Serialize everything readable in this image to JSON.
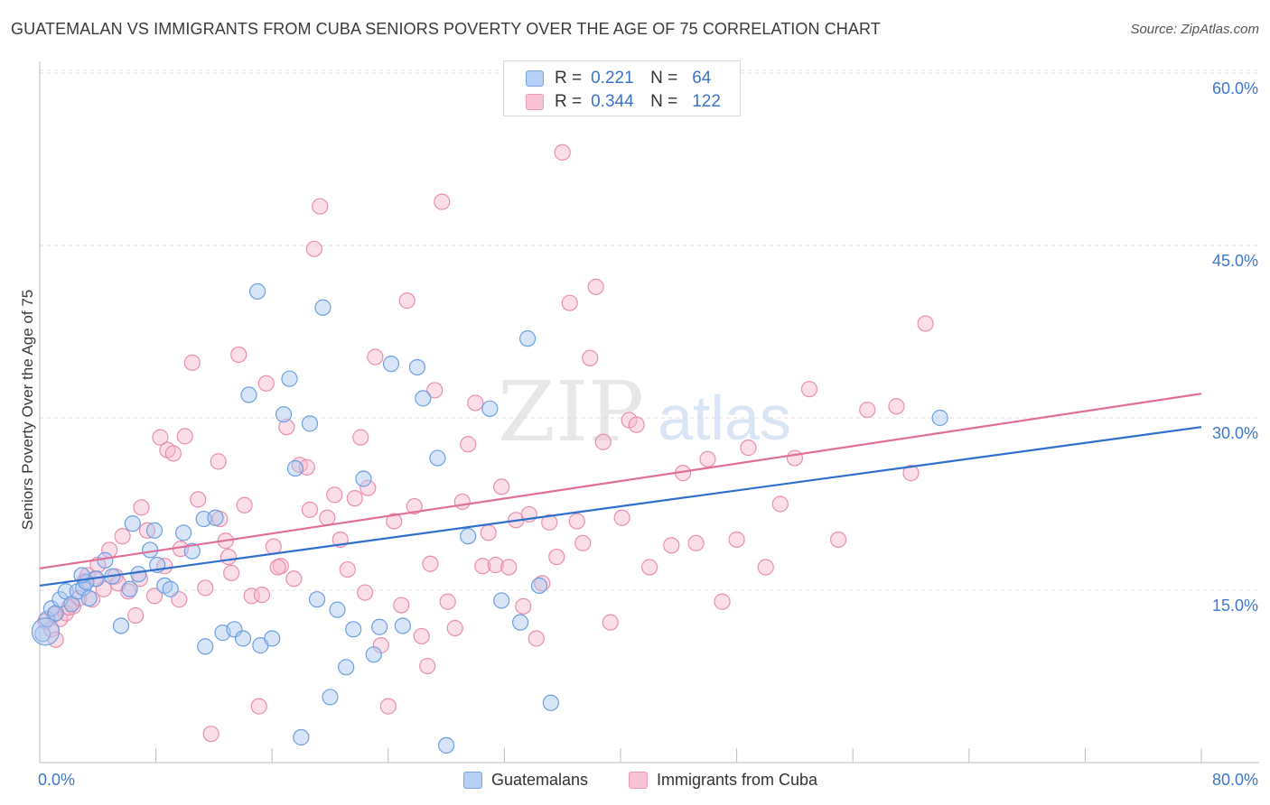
{
  "title": "GUATEMALAN VS IMMIGRANTS FROM CUBA SENIORS POVERTY OVER THE AGE OF 75 CORRELATION CHART",
  "source": "Source: ZipAtlas.com",
  "watermark": {
    "zip": "ZIP",
    "atlas": "atlas"
  },
  "legend_top": {
    "rows": [
      {
        "r_label": "R =",
        "r_value": "0.221",
        "n_label": "N =",
        "n_value": "64"
      },
      {
        "r_label": "R =",
        "r_value": "0.344",
        "n_label": "N =",
        "n_value": "122"
      }
    ]
  },
  "legend_bottom": {
    "series_a": "Guatemalans",
    "series_b": "Immigrants from Cuba"
  },
  "colors": {
    "blue_fill": "#a9c6f0",
    "blue_stroke": "#6f9fe0",
    "blue_line": "#2f6fcc",
    "pink_fill": "#f6b6cb",
    "pink_stroke": "#e98fae",
    "pink_line": "#e06e98",
    "grid": "#dcdcdc",
    "axis_text": "#3f78cc"
  },
  "chart_data": {
    "type": "scatter",
    "title": "GUATEMALAN VS IMMIGRANTS FROM CUBA SENIORS POVERTY OVER THE AGE OF 75 CORRELATION CHART",
    "xlabel": "",
    "ylabel": "Seniors Poverty Over the Age of 75",
    "xlim": [
      0,
      80
    ],
    "ylim": [
      0,
      62
    ],
    "x_tick_labels": [
      "0.0%",
      "80.0%"
    ],
    "y_ticks": [
      15,
      30,
      45,
      60
    ],
    "y_tick_labels": [
      "15.0%",
      "30.0%",
      "45.0%",
      "60.0%"
    ],
    "grid": true,
    "series": [
      {
        "name": "Guatemalans",
        "r": 0.221,
        "n": 64,
        "trend": {
          "x": [
            0,
            80
          ],
          "y": [
            15.4,
            29.2
          ]
        },
        "points": [
          [
            0.2,
            11.2
          ],
          [
            0.5,
            12.5
          ],
          [
            0.8,
            13.4
          ],
          [
            1.1,
            13.0
          ],
          [
            1.4,
            14.2
          ],
          [
            1.8,
            14.9
          ],
          [
            2.2,
            13.8
          ],
          [
            2.6,
            14.9
          ],
          [
            3.0,
            15.2
          ],
          [
            3.4,
            14.3
          ],
          [
            3.9,
            16.0
          ],
          [
            4.5,
            17.6
          ],
          [
            5.0,
            16.2
          ],
          [
            5.6,
            11.9
          ],
          [
            6.2,
            15.1
          ],
          [
            6.8,
            16.4
          ],
          [
            7.6,
            18.5
          ],
          [
            8.1,
            17.2
          ],
          [
            8.6,
            15.4
          ],
          [
            9.0,
            15.1
          ],
          [
            9.9,
            20.0
          ],
          [
            10.5,
            18.4
          ],
          [
            11.3,
            21.2
          ],
          [
            12.1,
            21.3
          ],
          [
            12.6,
            11.3
          ],
          [
            13.4,
            11.6
          ],
          [
            14.0,
            10.8
          ],
          [
            14.4,
            32.0
          ],
          [
            15.0,
            41.0
          ],
          [
            15.2,
            10.2
          ],
          [
            16.0,
            10.8
          ],
          [
            16.8,
            30.3
          ],
          [
            17.2,
            33.4
          ],
          [
            17.6,
            25.6
          ],
          [
            18.0,
            2.2
          ],
          [
            18.6,
            29.5
          ],
          [
            19.1,
            14.2
          ],
          [
            19.5,
            39.6
          ],
          [
            20.0,
            5.7
          ],
          [
            20.5,
            13.3
          ],
          [
            21.1,
            8.3
          ],
          [
            21.6,
            11.6
          ],
          [
            22.3,
            24.7
          ],
          [
            23.0,
            9.4
          ],
          [
            23.4,
            11.8
          ],
          [
            24.2,
            34.7
          ],
          [
            25.0,
            11.9
          ],
          [
            26.0,
            34.4
          ],
          [
            26.4,
            31.7
          ],
          [
            27.4,
            26.5
          ],
          [
            28.0,
            1.5
          ],
          [
            29.5,
            19.7
          ],
          [
            31.0,
            30.8
          ],
          [
            31.8,
            14.1
          ],
          [
            33.1,
            12.2
          ],
          [
            33.6,
            36.9
          ],
          [
            34.4,
            15.4
          ],
          [
            35.2,
            5.2
          ],
          [
            11.4,
            10.1
          ],
          [
            6.4,
            20.8
          ],
          [
            7.9,
            20.2
          ],
          [
            3.2,
            15.7
          ],
          [
            2.9,
            16.3
          ],
          [
            62.0,
            30.0
          ]
        ]
      },
      {
        "name": "Immigrants from Cuba",
        "r": 0.344,
        "n": 122,
        "trend": {
          "x": [
            0,
            80
          ],
          "y": [
            16.9,
            32.1
          ]
        },
        "points": [
          [
            0.4,
            12.3
          ],
          [
            0.8,
            11.6
          ],
          [
            1.1,
            10.7
          ],
          [
            1.4,
            12.5
          ],
          [
            1.8,
            13.0
          ],
          [
            2.3,
            13.6
          ],
          [
            2.7,
            14.3
          ],
          [
            3.1,
            15.8
          ],
          [
            3.6,
            14.2
          ],
          [
            4.0,
            17.2
          ],
          [
            4.4,
            15.1
          ],
          [
            4.8,
            18.5
          ],
          [
            5.2,
            16.2
          ],
          [
            5.7,
            19.7
          ],
          [
            6.1,
            14.9
          ],
          [
            6.6,
            12.8
          ],
          [
            7.0,
            22.2
          ],
          [
            7.4,
            20.2
          ],
          [
            7.9,
            14.5
          ],
          [
            8.3,
            28.3
          ],
          [
            8.8,
            27.2
          ],
          [
            9.2,
            26.9
          ],
          [
            9.6,
            14.2
          ],
          [
            10.0,
            28.4
          ],
          [
            10.5,
            34.8
          ],
          [
            10.9,
            22.9
          ],
          [
            11.4,
            15.2
          ],
          [
            11.8,
            2.5
          ],
          [
            12.3,
            26.2
          ],
          [
            12.8,
            19.3
          ],
          [
            13.2,
            16.5
          ],
          [
            13.7,
            35.5
          ],
          [
            14.1,
            22.4
          ],
          [
            14.6,
            14.5
          ],
          [
            15.1,
            4.9
          ],
          [
            15.6,
            33.0
          ],
          [
            16.1,
            18.8
          ],
          [
            16.6,
            17.1
          ],
          [
            17.0,
            29.2
          ],
          [
            17.5,
            16.0
          ],
          [
            17.9,
            25.9
          ],
          [
            18.4,
            25.7
          ],
          [
            18.9,
            44.7
          ],
          [
            19.3,
            48.4
          ],
          [
            19.8,
            21.3
          ],
          [
            20.3,
            23.3
          ],
          [
            20.7,
            19.4
          ],
          [
            21.2,
            16.8
          ],
          [
            21.7,
            23.0
          ],
          [
            22.1,
            28.3
          ],
          [
            22.6,
            23.9
          ],
          [
            23.1,
            35.3
          ],
          [
            23.5,
            10.2
          ],
          [
            24.0,
            4.9
          ],
          [
            24.4,
            21.0
          ],
          [
            24.9,
            13.7
          ],
          [
            25.3,
            40.2
          ],
          [
            25.8,
            22.3
          ],
          [
            26.3,
            11.0
          ],
          [
            26.7,
            8.4
          ],
          [
            27.2,
            32.4
          ],
          [
            27.7,
            48.8
          ],
          [
            28.1,
            14.0
          ],
          [
            28.6,
            11.7
          ],
          [
            29.1,
            22.7
          ],
          [
            29.5,
            27.7
          ],
          [
            30.0,
            31.3
          ],
          [
            30.5,
            17.1
          ],
          [
            30.9,
            20.0
          ],
          [
            31.4,
            17.2
          ],
          [
            31.8,
            24.0
          ],
          [
            32.3,
            17.0
          ],
          [
            32.8,
            21.1
          ],
          [
            33.3,
            13.6
          ],
          [
            33.7,
            21.6
          ],
          [
            34.2,
            10.8
          ],
          [
            34.6,
            15.6
          ],
          [
            35.1,
            20.9
          ],
          [
            35.6,
            17.9
          ],
          [
            36.0,
            53.1
          ],
          [
            36.5,
            40.0
          ],
          [
            37.0,
            21.0
          ],
          [
            37.4,
            19.1
          ],
          [
            37.9,
            35.2
          ],
          [
            38.3,
            41.4
          ],
          [
            38.8,
            27.9
          ],
          [
            39.3,
            12.2
          ],
          [
            40.1,
            21.3
          ],
          [
            40.6,
            29.8
          ],
          [
            41.1,
            29.4
          ],
          [
            42.0,
            17.0
          ],
          [
            43.5,
            18.9
          ],
          [
            44.3,
            25.2
          ],
          [
            45.2,
            19.1
          ],
          [
            46.0,
            26.4
          ],
          [
            47.0,
            14.0
          ],
          [
            48.0,
            19.4
          ],
          [
            48.8,
            27.4
          ],
          [
            50.0,
            17.0
          ],
          [
            51.0,
            22.5
          ],
          [
            52.0,
            26.5
          ],
          [
            53.0,
            32.5
          ],
          [
            55.0,
            19.4
          ],
          [
            57.0,
            30.7
          ],
          [
            59.0,
            31.0
          ],
          [
            60.0,
            25.2
          ],
          [
            61.0,
            38.2
          ],
          [
            3.3,
            16.3
          ],
          [
            5.4,
            15.6
          ],
          [
            6.9,
            16.0
          ],
          [
            9.7,
            18.6
          ],
          [
            12.4,
            21.2
          ],
          [
            15.3,
            14.6
          ],
          [
            18.6,
            22.0
          ],
          [
            22.4,
            14.8
          ],
          [
            26.9,
            17.3
          ],
          [
            3.8,
            16.0
          ],
          [
            8.6,
            17.1
          ],
          [
            13.0,
            17.9
          ],
          [
            16.4,
            17.0
          ],
          [
            1.0,
            12.9
          ],
          [
            2.0,
            13.5
          ]
        ]
      }
    ]
  }
}
